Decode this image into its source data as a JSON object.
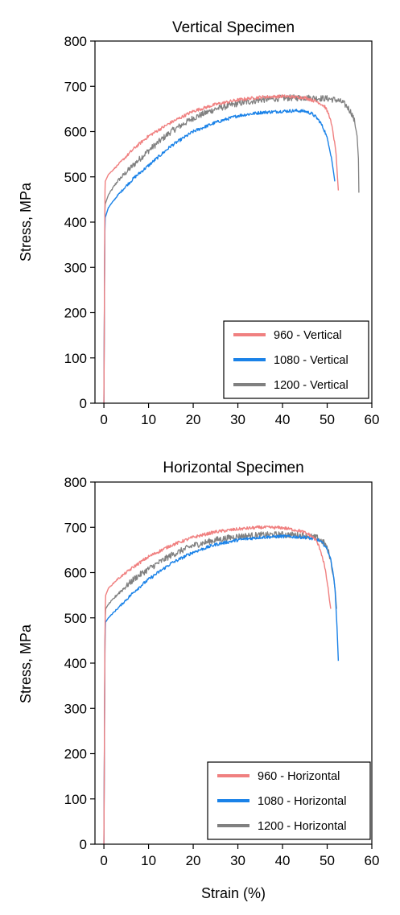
{
  "chart_data": [
    {
      "type": "line",
      "title": "Vertical Specimen",
      "xlabel": "",
      "ylabel": "Stress, MPa",
      "xlim": [
        -2,
        60
      ],
      "ylim": [
        0,
        800
      ],
      "xticks": [
        0,
        10,
        20,
        30,
        40,
        50,
        60
      ],
      "yticks": [
        0,
        100,
        200,
        300,
        400,
        500,
        600,
        700,
        800
      ],
      "grid": false,
      "legend_position": "bottom-right",
      "series": [
        {
          "name": "960 - Vertical",
          "color": "#f08080",
          "x": [
            0,
            0.1,
            0.2,
            0.25,
            0.3,
            1,
            2,
            3,
            5,
            7,
            10,
            15,
            20,
            25,
            30,
            35,
            40,
            45,
            48,
            49.5,
            50.5,
            51.3,
            52,
            52.3,
            52.5
          ],
          "y": [
            0,
            200,
            400,
            470,
            490,
            505,
            515,
            525,
            545,
            565,
            590,
            620,
            645,
            660,
            670,
            676,
            678,
            675,
            665,
            655,
            635,
            600,
            550,
            500,
            470
          ]
        },
        {
          "name": "1080 - Vertical",
          "color": "#1a82e8",
          "x": [
            0,
            0.08,
            0.16,
            0.22,
            0.3,
            1,
            2,
            3,
            5,
            7,
            10,
            15,
            20,
            25,
            30,
            35,
            40,
            43,
            45,
            46.5,
            47.5,
            48.5,
            49.5,
            50.3,
            51,
            51.5,
            51.7
          ],
          "y": [
            0,
            150,
            300,
            380,
            410,
            432,
            445,
            458,
            480,
            500,
            525,
            568,
            600,
            620,
            635,
            642,
            645,
            646,
            645,
            640,
            632,
            620,
            600,
            575,
            540,
            505,
            490
          ]
        },
        {
          "name": "1200 - Vertical",
          "color": "#808080",
          "x": [
            0,
            0.1,
            0.2,
            0.25,
            0.3,
            1,
            2,
            3,
            5,
            7,
            10,
            15,
            20,
            25,
            30,
            35,
            40,
            45,
            50,
            52,
            53.5,
            54.5,
            55.5,
            56.2,
            56.7,
            57,
            57.1
          ],
          "y": [
            0,
            200,
            380,
            430,
            440,
            460,
            475,
            490,
            510,
            530,
            558,
            600,
            630,
            650,
            662,
            670,
            674,
            675,
            673,
            670,
            664,
            655,
            640,
            620,
            590,
            540,
            465
          ]
        }
      ]
    },
    {
      "type": "line",
      "title": "Horizontal Specimen",
      "xlabel": "Strain (%)",
      "ylabel": "Stress, MPa",
      "xlim": [
        -2,
        60
      ],
      "ylim": [
        0,
        800
      ],
      "xticks": [
        0,
        10,
        20,
        30,
        40,
        50,
        60
      ],
      "yticks": [
        0,
        100,
        200,
        300,
        400,
        500,
        600,
        700,
        800
      ],
      "grid": false,
      "legend_position": "bottom-right",
      "series": [
        {
          "name": "960 - Horizontal",
          "color": "#f08080",
          "x": [
            0,
            0.1,
            0.2,
            0.3,
            0.4,
            1,
            2,
            3,
            5,
            7,
            10,
            15,
            20,
            25,
            30,
            35,
            40,
            44,
            46,
            47.5,
            48.5,
            49.3,
            50,
            50.5,
            50.8
          ],
          "y": [
            0,
            200,
            400,
            520,
            550,
            565,
            575,
            585,
            600,
            615,
            635,
            660,
            678,
            690,
            696,
            700,
            699,
            692,
            684,
            672,
            650,
            620,
            580,
            540,
            520
          ]
        },
        {
          "name": "1080 - Horizontal",
          "color": "#1a82e8",
          "x": [
            0,
            0.08,
            0.16,
            0.25,
            0.35,
            1,
            2,
            3,
            5,
            7,
            10,
            15,
            20,
            25,
            30,
            35,
            40,
            45,
            48,
            49.5,
            50.5,
            51.2,
            51.8,
            52.2,
            52.5
          ],
          "y": [
            0,
            150,
            300,
            450,
            490,
            500,
            510,
            520,
            540,
            560,
            585,
            620,
            645,
            662,
            672,
            678,
            680,
            678,
            672,
            660,
            640,
            610,
            560,
            480,
            405
          ]
        },
        {
          "name": "1200 - Horizontal",
          "color": "#808080",
          "x": [
            0,
            0.1,
            0.2,
            0.3,
            0.4,
            1,
            2,
            3,
            5,
            7,
            10,
            15,
            20,
            25,
            30,
            35,
            40,
            45,
            48,
            49.5,
            50.5,
            51.2,
            51.8,
            52.1
          ],
          "y": [
            0,
            200,
            400,
            500,
            520,
            530,
            540,
            552,
            570,
            588,
            608,
            638,
            660,
            672,
            680,
            683,
            684,
            682,
            676,
            664,
            640,
            605,
            560,
            520
          ]
        }
      ]
    }
  ]
}
